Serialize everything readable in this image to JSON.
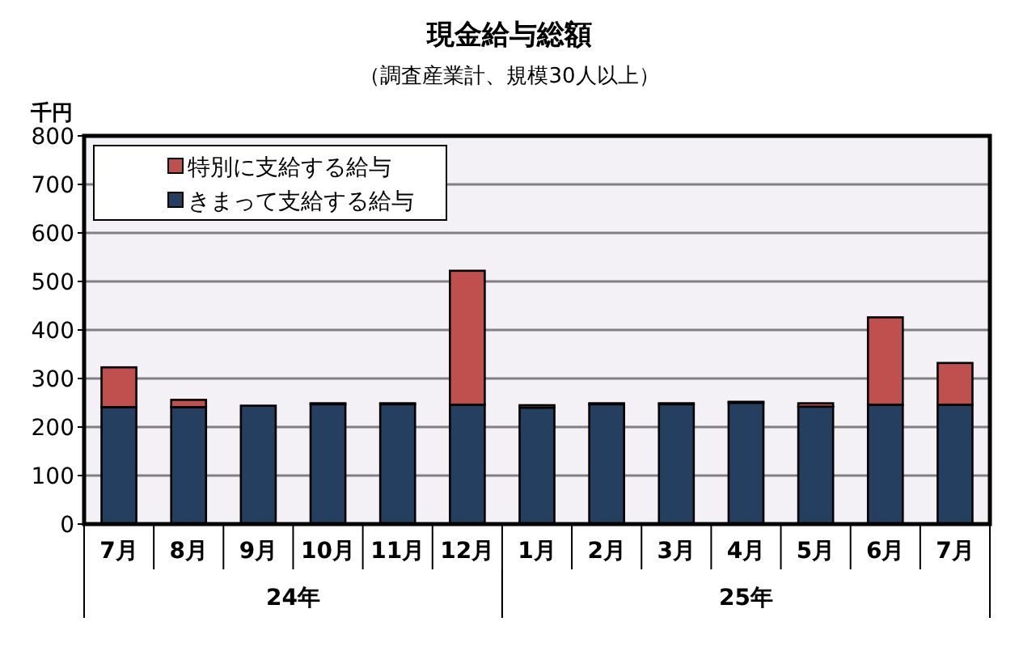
{
  "chart_data": {
    "type": "bar",
    "title": "現金給与総額",
    "subtitle": "（調査産業計、規模30人以上）",
    "ylabel": "千円",
    "categories": [
      "7月",
      "8月",
      "9月",
      "10月",
      "11月",
      "12月",
      "1月",
      "2月",
      "3月",
      "4月",
      "5月",
      "6月",
      "7月"
    ],
    "stacked": true,
    "ylim": [
      0,
      800
    ],
    "yticks": [
      0,
      100,
      200,
      300,
      400,
      500,
      600,
      700,
      800
    ],
    "grid": "y",
    "legend": "top left",
    "series": [
      {
        "name": "きまって支給する給与",
        "color": "#243f60",
        "values": [
          241,
          241,
          244,
          247,
          247,
          246,
          240,
          247,
          247,
          250,
          242,
          246,
          246
        ]
      },
      {
        "name": "特別に支給する給与",
        "color": "#c0504d",
        "values": [
          82,
          15,
          null,
          2,
          2,
          276,
          5,
          2,
          2,
          2,
          7,
          180,
          86
        ]
      }
    ],
    "annotations": [
      "24年",
      "25年"
    ]
  }
}
